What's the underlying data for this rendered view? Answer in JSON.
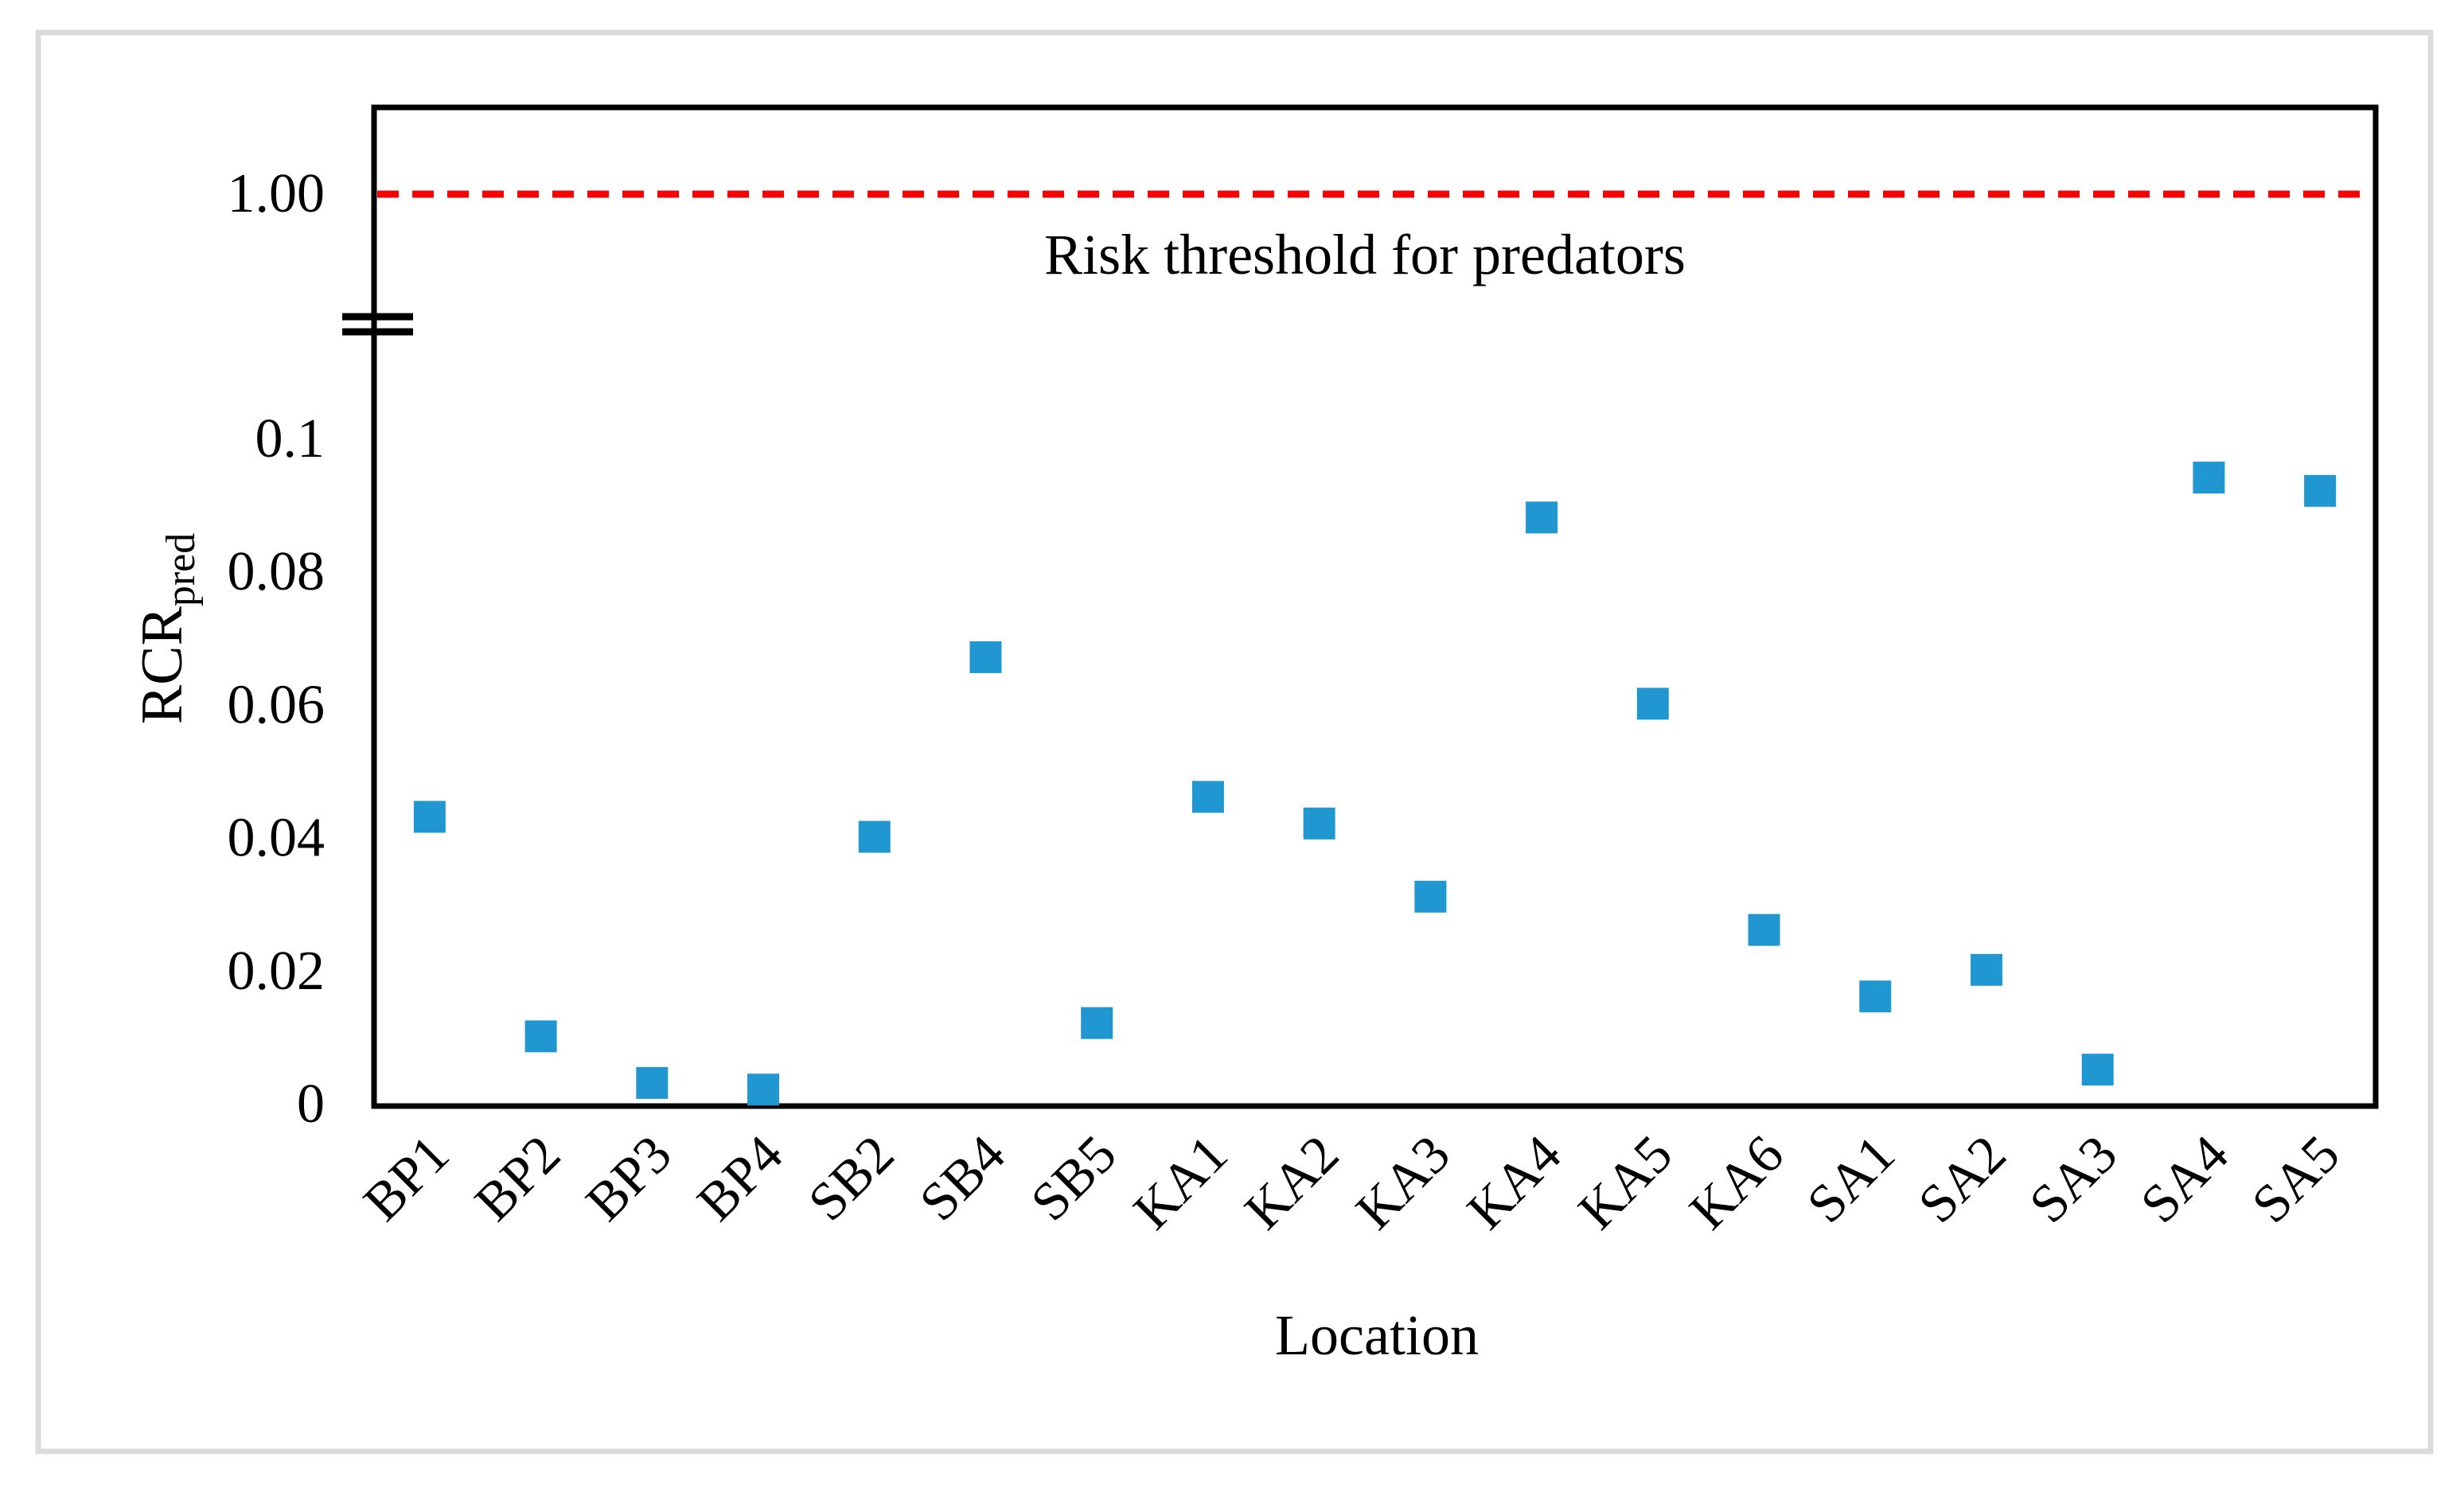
{
  "figure": {
    "background": "#FFFFFF",
    "border_color": "#DBDBDB",
    "text_color": "#000000"
  },
  "chart_data": {
    "type": "scatter",
    "title": "",
    "xlabel": "Location",
    "ylabel": "RCR",
    "ylabel_subscript": "pred",
    "categories": [
      "BP1",
      "BP2",
      "BP3",
      "BP4",
      "SB2",
      "SB4",
      "SB5",
      "KA1",
      "KA2",
      "KA3",
      "KA4",
      "KA5",
      "KA6",
      "SA1",
      "SA2",
      "SA3",
      "SA4",
      "SA5"
    ],
    "values": [
      0.043,
      0.01,
      0.003,
      0.002,
      0.04,
      0.067,
      0.012,
      0.046,
      0.042,
      0.031,
      0.088,
      0.06,
      0.026,
      0.016,
      0.02,
      0.005,
      0.094,
      0.092
    ],
    "y_axis": {
      "scale": "linear-with-break",
      "linear_range": [
        0,
        0.1
      ],
      "linear_tick_values": [
        0,
        0.02,
        0.04,
        0.06,
        0.08,
        0.1
      ],
      "linear_tick_labels": [
        "0",
        "0.02",
        "0.04",
        "0.06",
        "0.08",
        "0.1"
      ],
      "break_symbol": true,
      "upper_tick_value": 1.0,
      "upper_tick_label": "1.00"
    },
    "x_axis": {
      "tick_rotation_deg": -45
    },
    "threshold": {
      "value": 1.0,
      "label": "Risk threshold for predators",
      "line_color": "#F20505",
      "line_style": "dashed"
    },
    "marker": {
      "shape": "square",
      "color": "#2197D2"
    },
    "legend": null,
    "grid": false
  }
}
